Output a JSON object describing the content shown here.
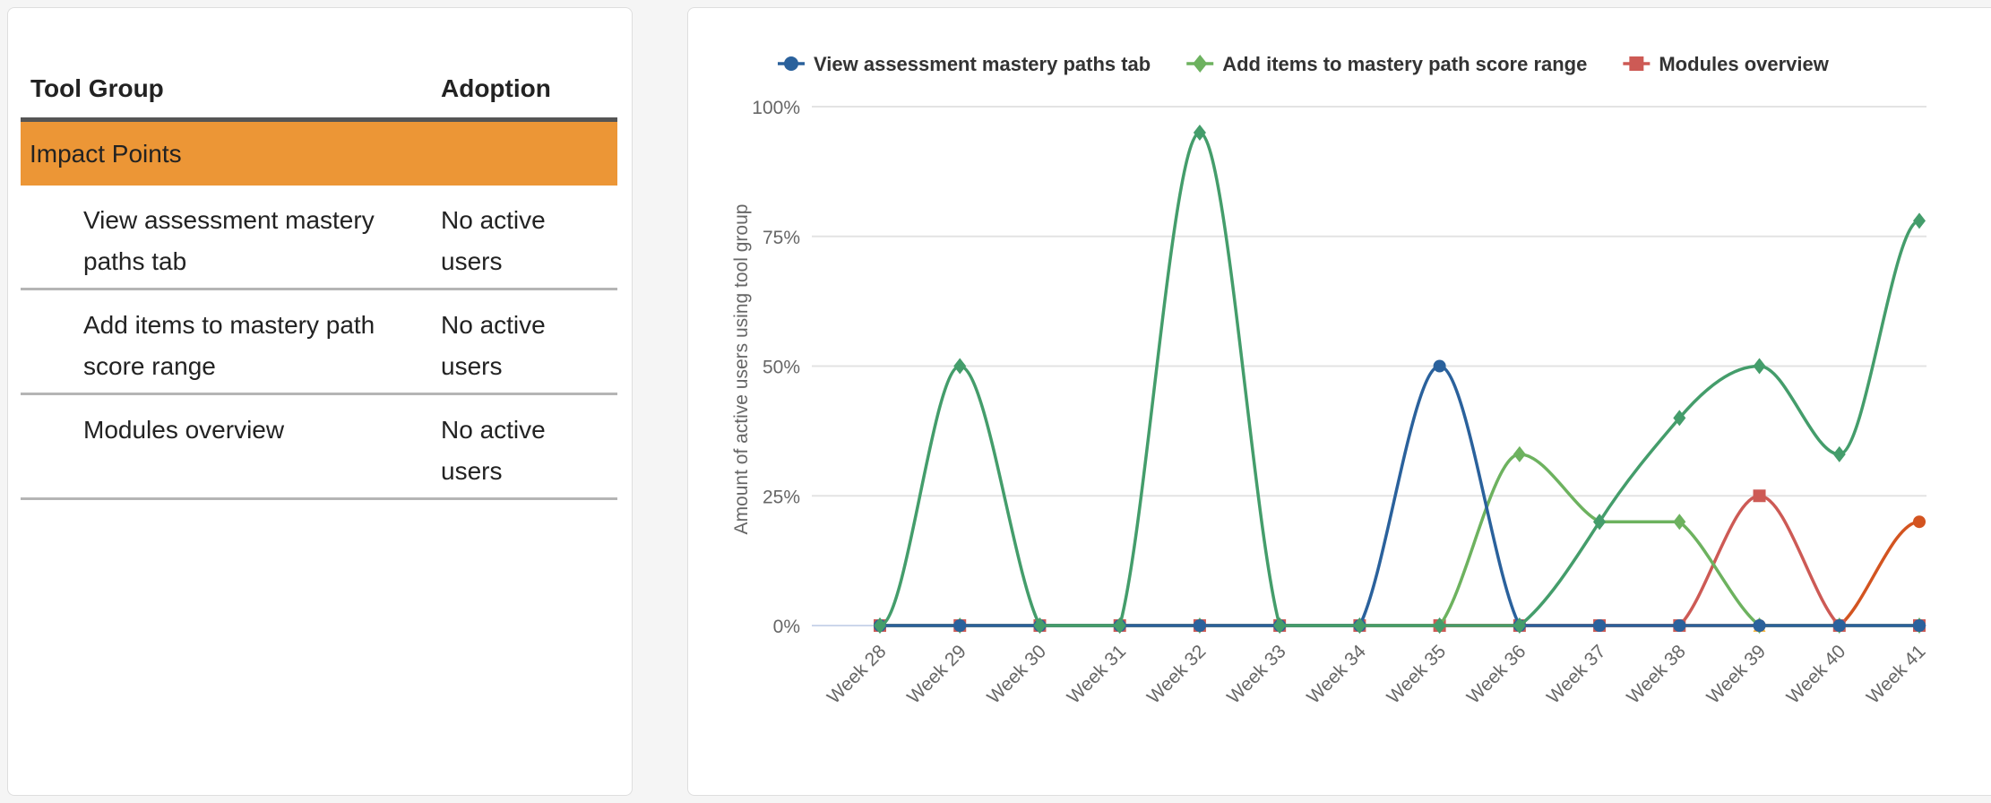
{
  "table": {
    "headers": {
      "tool_group": "Tool Group",
      "adoption": "Adoption"
    },
    "group": {
      "label": "Impact Points",
      "color": "#ec9636"
    },
    "rows": [
      {
        "name": "View assessment mastery paths tab",
        "adoption": "No active users"
      },
      {
        "name": "Add items to mastery path score range",
        "adoption": "No active users"
      },
      {
        "name": "Modules overview",
        "adoption": "No active users"
      }
    ]
  },
  "chart_data": {
    "type": "line",
    "ylabel": "Amount of active users using tool group",
    "xlabel": "",
    "categories": [
      "Week 28",
      "Week 29",
      "Week 30",
      "Week 31",
      "Week 32",
      "Week 33",
      "Week 34",
      "Week 35",
      "Week 36",
      "Week 37",
      "Week 38",
      "Week 39",
      "Week 40",
      "Week 41"
    ],
    "ylim": [
      0,
      100
    ],
    "yticks": [
      "0%",
      "25%",
      "50%",
      "75%",
      "100%"
    ],
    "ytick_values": [
      0,
      25,
      50,
      75,
      100
    ],
    "grid": true,
    "smooth": true,
    "legend_position": "top",
    "series": [
      {
        "values": [
          0,
          0,
          0,
          0,
          0,
          0,
          0,
          0,
          0,
          0,
          0,
          0,
          0,
          0
        ],
        "color": "#f5b843",
        "marker": "triangle"
      },
      {
        "values": [
          0,
          0,
          0,
          0,
          0,
          0,
          0,
          0,
          0,
          0,
          0,
          0,
          0,
          20
        ],
        "color": "#d35420",
        "marker": "circle"
      },
      {
        "name": "Modules overview",
        "values": [
          0,
          0,
          0,
          0,
          0,
          0,
          0,
          0,
          0,
          0,
          0,
          25,
          0,
          0
        ],
        "color": "#cd5a55",
        "marker": "square"
      },
      {
        "name": "Add items to mastery path score range",
        "values": [
          0,
          0,
          0,
          0,
          0,
          0,
          0,
          0,
          33,
          20,
          20,
          0,
          0,
          0
        ],
        "color": "#6db25f",
        "marker": "diamond"
      },
      {
        "name": "View assessment mastery paths tab",
        "values": [
          0,
          0,
          0,
          0,
          0,
          0,
          0,
          50,
          0,
          0,
          0,
          0,
          0,
          0
        ],
        "color": "#2a619c",
        "marker": "circle"
      },
      {
        "values": [
          0,
          50,
          0,
          0,
          95,
          0,
          0,
          0,
          0,
          20,
          40,
          50,
          33,
          78
        ],
        "color": "#449d6b",
        "marker": "diamond"
      }
    ],
    "legend": [
      {
        "label": "View assessment mastery paths tab",
        "color": "#2a619c",
        "marker": "circle"
      },
      {
        "label": "Add items to mastery path score range",
        "color": "#6db25f",
        "marker": "diamond"
      },
      {
        "label": "Modules overview",
        "color": "#cd5a55",
        "marker": "square"
      }
    ]
  }
}
